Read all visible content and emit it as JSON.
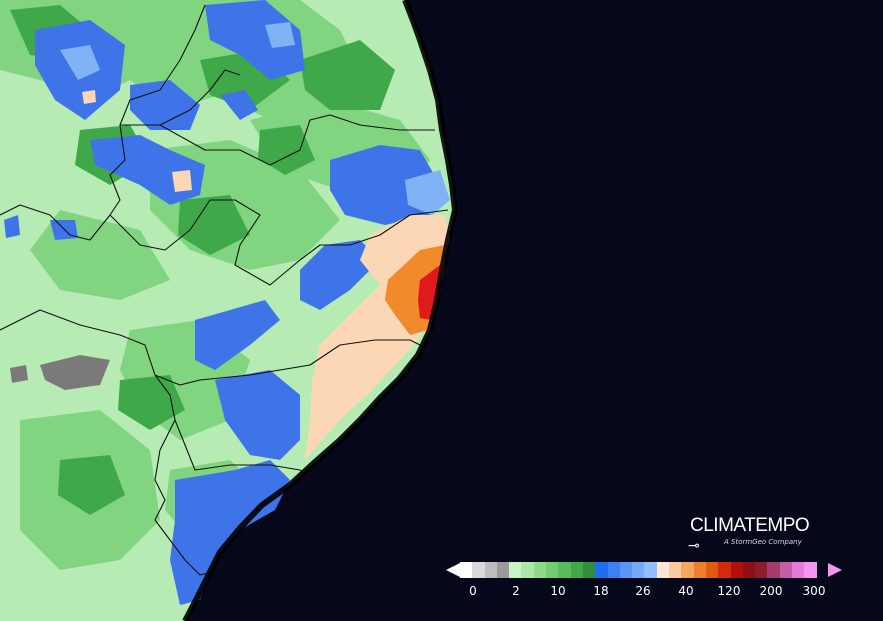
{
  "map": {
    "colors": {
      "ocean": "#05081a",
      "light_green": "#b6ecb4",
      "mid_green": "#7fd37e",
      "dark_green": "#3fa94a",
      "blue": "#3f74e8",
      "light_blue": "#7fb3f5",
      "peach": "#fcd7b6",
      "orange": "#f08a2a",
      "red": "#e01a1a",
      "gray": "#7a7a7a",
      "borders": "#111111"
    }
  },
  "brand": {
    "name": "CLIMATEMPO",
    "tagline": "A StormGeo Company"
  },
  "legend": {
    "swatches": [
      "#ffffff",
      "#d9d9d9",
      "#bdbdbd",
      "#9a9a9a",
      "#c9f3c7",
      "#a9e8a6",
      "#8ddb8a",
      "#72cc70",
      "#58bd58",
      "#3fa94a",
      "#2f8e3a",
      "#1e6ef0",
      "#3a82f2",
      "#5a96f4",
      "#77aaf6",
      "#93bef8",
      "#fde7d2",
      "#fcc9a2",
      "#f7a45c",
      "#ef7f2c",
      "#e05a12",
      "#d12a0d",
      "#b0120b",
      "#8e0f16",
      "#8a1d2e",
      "#a63a6a",
      "#c45ea6",
      "#e47ad8",
      "#f596ee"
    ],
    "labels": [
      "0",
      "2",
      "10",
      "18",
      "26",
      "40",
      "120",
      "200",
      "300"
    ]
  }
}
